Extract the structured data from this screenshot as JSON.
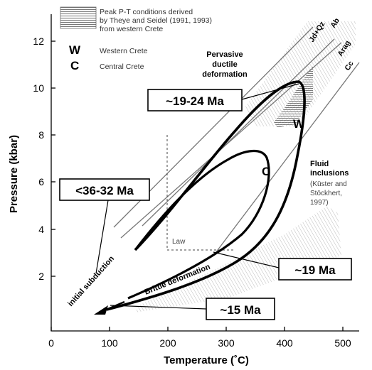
{
  "axes": {
    "x_title": "Temperature (˚C)",
    "y_title": "Pressure (kbar)",
    "x_ticks": [
      "0",
      "100",
      "200",
      "300",
      "400",
      "500"
    ],
    "y_ticks": [
      "2",
      "4",
      "6",
      "8",
      "10",
      "12"
    ],
    "xlim": [
      0,
      530
    ],
    "ylim": [
      0,
      13
    ]
  },
  "legend": {
    "peak_text": [
      "Peak P-T conditions derived",
      "by Theye and Seidel (1991, 1993)",
      "from western Crete"
    ],
    "w_symbol": "W",
    "w_text": "Western Crete",
    "c_symbol": "C",
    "c_text": "Central Crete"
  },
  "paths": {
    "west_letter": "W",
    "central_letter": "C"
  },
  "annotations": {
    "pervasive": [
      "Pervasive",
      "ductile",
      "deformation"
    ],
    "fluid": [
      "Fluid",
      "inclusions"
    ],
    "fluid_ref": [
      "(Küster and",
      "Stöckhert,",
      "1997)"
    ],
    "law": "Law",
    "brittle": "Brittle deformation",
    "initial": "initial subduction"
  },
  "minerals": {
    "jd_qz": "Jd+Qz",
    "ab": "Ab",
    "arag": "Arag",
    "cc": "Cc"
  },
  "ages": {
    "a1": "~19-24 Ma",
    "a2": "<36-32 Ma",
    "a3": "~19 Ma",
    "a4": "~15 Ma"
  },
  "colors": {
    "hatch": "#555555",
    "path": "#000000",
    "reaction_line": "#777777"
  }
}
